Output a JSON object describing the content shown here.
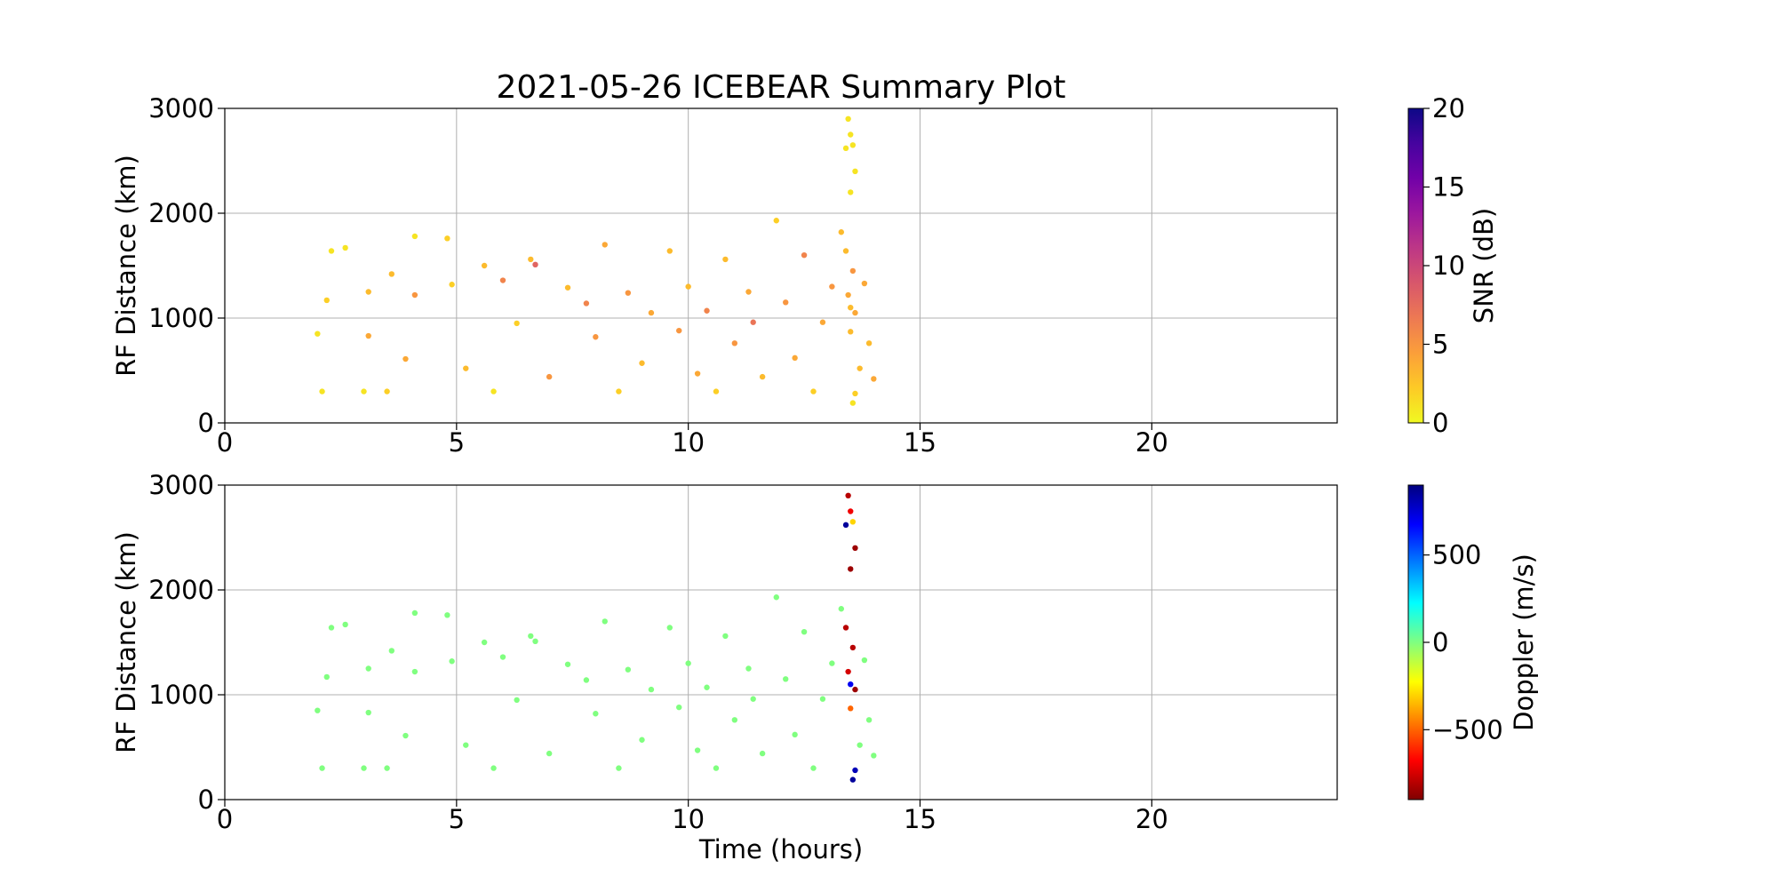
{
  "chart_data": [
    {
      "type": "scatter",
      "title": "2021-05-26 ICEBEAR Summary Plot",
      "y_label": "RF Distance (km)",
      "xlim": [
        0,
        24
      ],
      "xticks": [
        0,
        5,
        10,
        15,
        20
      ],
      "ylim": [
        0,
        3000
      ],
      "yticks": [
        0,
        1000,
        2000,
        3000
      ],
      "grid": true,
      "x": [
        2.1,
        2.2,
        2.3,
        2.6,
        2.0,
        3.0,
        3.1,
        3.1,
        3.5,
        3.6,
        3.9,
        4.1,
        4.1,
        4.8,
        4.9,
        5.2,
        5.6,
        5.8,
        6.0,
        6.3,
        6.6,
        6.7,
        7.0,
        7.4,
        7.8,
        8.0,
        8.2,
        8.5,
        8.7,
        9.0,
        9.2,
        9.6,
        9.8,
        10.0,
        10.2,
        10.4,
        10.6,
        10.8,
        11.0,
        11.3,
        11.4,
        11.6,
        11.9,
        12.1,
        12.3,
        12.5,
        12.7,
        12.9,
        13.1,
        13.3,
        13.45,
        13.5,
        13.55,
        13.5,
        13.6,
        13.4,
        13.45,
        13.5,
        13.55,
        13.6,
        13.5,
        13.55,
        13.6,
        13.7,
        13.8,
        13.9,
        14.0,
        13.4
      ],
      "y": [
        300,
        1170,
        1640,
        1670,
        850,
        300,
        830,
        1250,
        300,
        1420,
        610,
        1220,
        1780,
        1760,
        1320,
        520,
        1500,
        300,
        1360,
        950,
        1560,
        1510,
        440,
        1290,
        1140,
        820,
        1700,
        300,
        1240,
        570,
        1050,
        1640,
        880,
        1300,
        470,
        1070,
        300,
        1560,
        760,
        1250,
        960,
        440,
        1930,
        1150,
        620,
        1600,
        300,
        960,
        1300,
        1820,
        2900,
        2750,
        2650,
        2200,
        2400,
        1640,
        1220,
        1100,
        1450,
        1050,
        870,
        190,
        280,
        520,
        1330,
        760,
        420,
        2620
      ],
      "color_values": [
        1,
        2,
        1,
        1,
        1,
        1,
        4,
        3,
        2,
        3,
        4,
        5,
        1,
        2,
        2,
        3,
        3,
        1,
        6,
        2,
        3,
        8,
        5,
        3,
        6,
        5,
        4,
        2,
        5,
        3,
        4,
        3,
        5,
        3,
        4,
        6,
        2,
        3,
        5,
        4,
        7,
        3,
        2,
        5,
        4,
        6,
        2,
        4,
        5,
        3,
        1,
        1,
        1,
        1,
        1,
        3,
        4,
        3,
        5,
        4,
        3,
        1,
        2,
        3,
        4,
        3,
        4,
        1
      ],
      "colorbar": {
        "label": "SNR (dB)",
        "lim": [
          0,
          20
        ],
        "ticks": [
          0,
          5,
          10,
          15,
          20
        ],
        "colormap": [
          "#f0f921",
          "#fdca26",
          "#fb9f3a",
          "#ed7953",
          "#d8576b",
          "#bd3786",
          "#9c179e",
          "#7201a8",
          "#46039f",
          "#0d0887"
        ]
      }
    },
    {
      "type": "scatter",
      "x_label": "Time (hours)",
      "y_label": "RF Distance (km)",
      "xlim": [
        0,
        24
      ],
      "xticks": [
        0,
        5,
        10,
        15,
        20
      ],
      "ylim": [
        0,
        3000
      ],
      "yticks": [
        0,
        1000,
        2000,
        3000
      ],
      "grid": true,
      "x": [
        2.1,
        2.2,
        2.3,
        2.6,
        2.0,
        3.0,
        3.1,
        3.1,
        3.5,
        3.6,
        3.9,
        4.1,
        4.1,
        4.8,
        4.9,
        5.2,
        5.6,
        5.8,
        6.0,
        6.3,
        6.6,
        6.7,
        7.0,
        7.4,
        7.8,
        8.0,
        8.2,
        8.5,
        8.7,
        9.0,
        9.2,
        9.6,
        9.8,
        10.0,
        10.2,
        10.4,
        10.6,
        10.8,
        11.0,
        11.3,
        11.4,
        11.6,
        11.9,
        12.1,
        12.3,
        12.5,
        12.7,
        12.9,
        13.1,
        13.3,
        13.45,
        13.5,
        13.55,
        13.5,
        13.6,
        13.4,
        13.45,
        13.5,
        13.55,
        13.6,
        13.5,
        13.55,
        13.6,
        13.7,
        13.8,
        13.9,
        14.0,
        13.4
      ],
      "y": [
        300,
        1170,
        1640,
        1670,
        850,
        300,
        830,
        1250,
        300,
        1420,
        610,
        1220,
        1780,
        1760,
        1320,
        520,
        1500,
        300,
        1360,
        950,
        1560,
        1510,
        440,
        1290,
        1140,
        820,
        1700,
        300,
        1240,
        570,
        1050,
        1640,
        880,
        1300,
        470,
        1070,
        300,
        1560,
        760,
        1250,
        960,
        440,
        1930,
        1150,
        620,
        1600,
        300,
        960,
        1300,
        1820,
        2900,
        2750,
        2650,
        2200,
        2400,
        1640,
        1220,
        1100,
        1450,
        1050,
        870,
        190,
        280,
        520,
        1330,
        760,
        420,
        2620
      ],
      "color_values": [
        0,
        0,
        0,
        0,
        0,
        0,
        0,
        0,
        0,
        0,
        0,
        0,
        0,
        0,
        0,
        0,
        0,
        0,
        0,
        0,
        0,
        0,
        0,
        0,
        0,
        0,
        0,
        0,
        0,
        0,
        0,
        0,
        0,
        0,
        0,
        0,
        0,
        0,
        0,
        0,
        0,
        0,
        0,
        0,
        0,
        0,
        0,
        0,
        0,
        0,
        -800,
        -700,
        -300,
        -850,
        -850,
        -800,
        -750,
        700,
        -800,
        -850,
        -500,
        850,
        800,
        0,
        0,
        0,
        0,
        850
      ],
      "colorbar": {
        "label": "Doppler (m/s)",
        "lim": [
          -900,
          900
        ],
        "ticks": [
          {
            "value": -500,
            "label": "−500"
          },
          0,
          500
        ],
        "colormap": [
          "#800000",
          "#ff0000",
          "#ff8000",
          "#ffff00",
          "#80ff80",
          "#00ffff",
          "#0080ff",
          "#0000ff",
          "#000080"
        ]
      }
    }
  ]
}
